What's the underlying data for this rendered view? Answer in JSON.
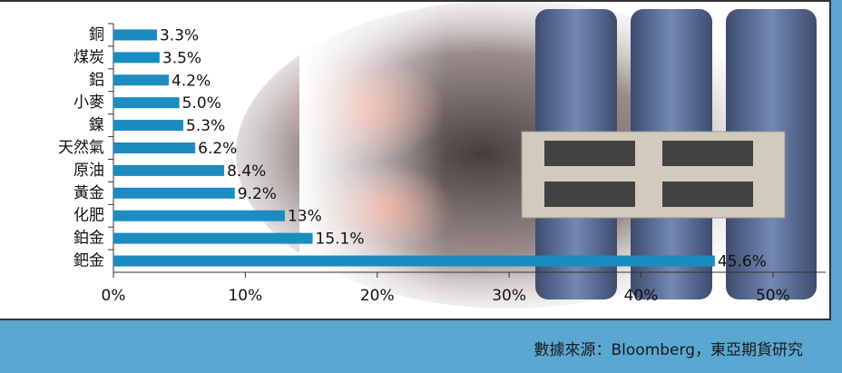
{
  "chart_data": {
    "type": "hbar",
    "categories": [
      "銅",
      "煤炭",
      "鋁",
      "小麥",
      "鎳",
      "天然氣",
      "原油",
      "黃金",
      "化肥",
      "鉑金",
      "鈀金"
    ],
    "values": [
      3.3,
      3.5,
      4.2,
      5.0,
      5.3,
      6.2,
      8.4,
      9.2,
      13,
      15.1,
      45.6
    ],
    "value_labels": [
      "3.3%",
      "3.5%",
      "4.2%",
      "5.0%",
      "5.3%",
      "6.2%",
      "8.4%",
      "9.2%",
      "13%",
      "15.1%",
      "45.6%"
    ],
    "color": "#1b8cc0",
    "xlim": [
      0,
      54
    ],
    "xticks": [
      {
        "value": 0,
        "label": "0%"
      },
      {
        "value": 10,
        "label": "10%"
      },
      {
        "value": 20,
        "label": "20%"
      },
      {
        "value": 30,
        "label": "30%"
      },
      {
        "value": 40,
        "label": "40%"
      },
      {
        "value": 50,
        "label": "50%"
      }
    ],
    "source": "數據來源：Bloomberg，東亞期貨研究"
  }
}
